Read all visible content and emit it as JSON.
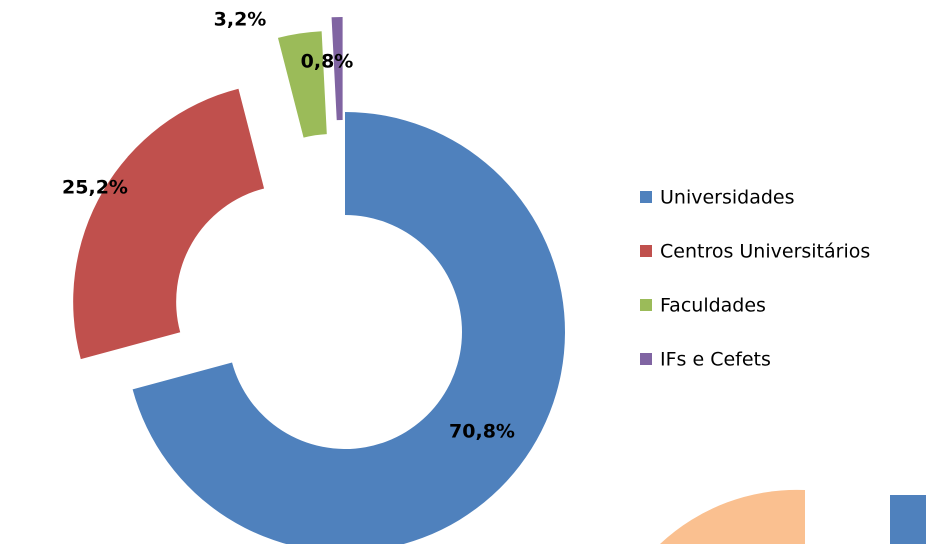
{
  "chart_data": {
    "type": "donut",
    "categories": [
      "Universidades",
      "Centros Universitários",
      "Faculdades",
      "IFs e Cefets"
    ],
    "values": [
      70.8,
      25.2,
      3.2,
      0.8
    ],
    "value_labels": [
      "70,8%",
      "25,2%",
      "3,2%",
      "0,8%"
    ],
    "colors": [
      "#4f81bd",
      "#c0504d",
      "#9bbb59",
      "#8064a2"
    ],
    "legend": "right"
  }
}
